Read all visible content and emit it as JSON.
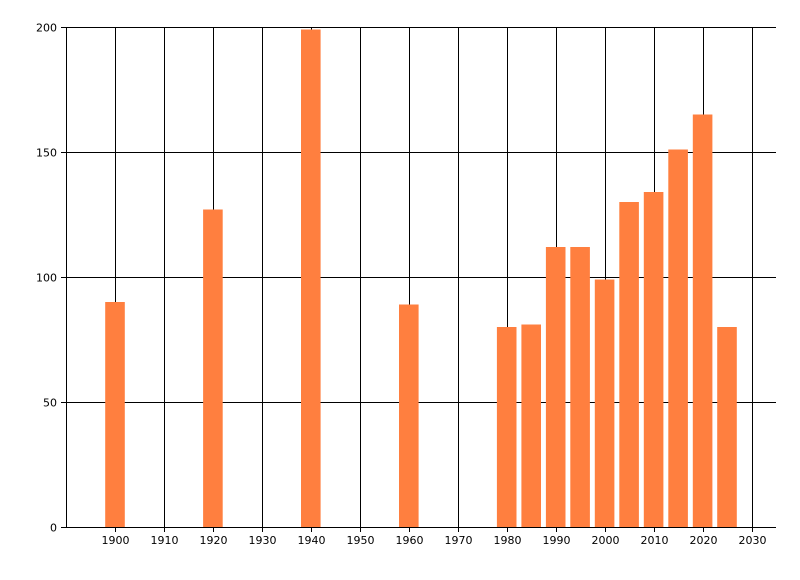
{
  "chart_data": {
    "type": "bar",
    "x": [
      1900,
      1920,
      1940,
      1960,
      1980,
      1985,
      1990,
      1995,
      2000,
      2005,
      2010,
      2015,
      2020,
      2025
    ],
    "values": [
      90,
      127,
      199,
      89,
      80,
      81,
      112,
      112,
      99,
      130,
      134,
      151,
      165,
      80
    ],
    "xlim": [
      1890,
      2035
    ],
    "ylim": [
      0,
      200
    ],
    "x_ticks": [
      "1900",
      "1910",
      "1920",
      "1930",
      "1940",
      "1950",
      "1960",
      "1970",
      "1980",
      "1990",
      "2000",
      "2010",
      "2020",
      "2030"
    ],
    "y_ticks": [
      "0",
      "50",
      "100",
      "150",
      "200"
    ],
    "title": "",
    "xlabel": "",
    "ylabel": "",
    "grid": true,
    "bar_color": "#ff7f3f",
    "grid_color": "#000000"
  }
}
